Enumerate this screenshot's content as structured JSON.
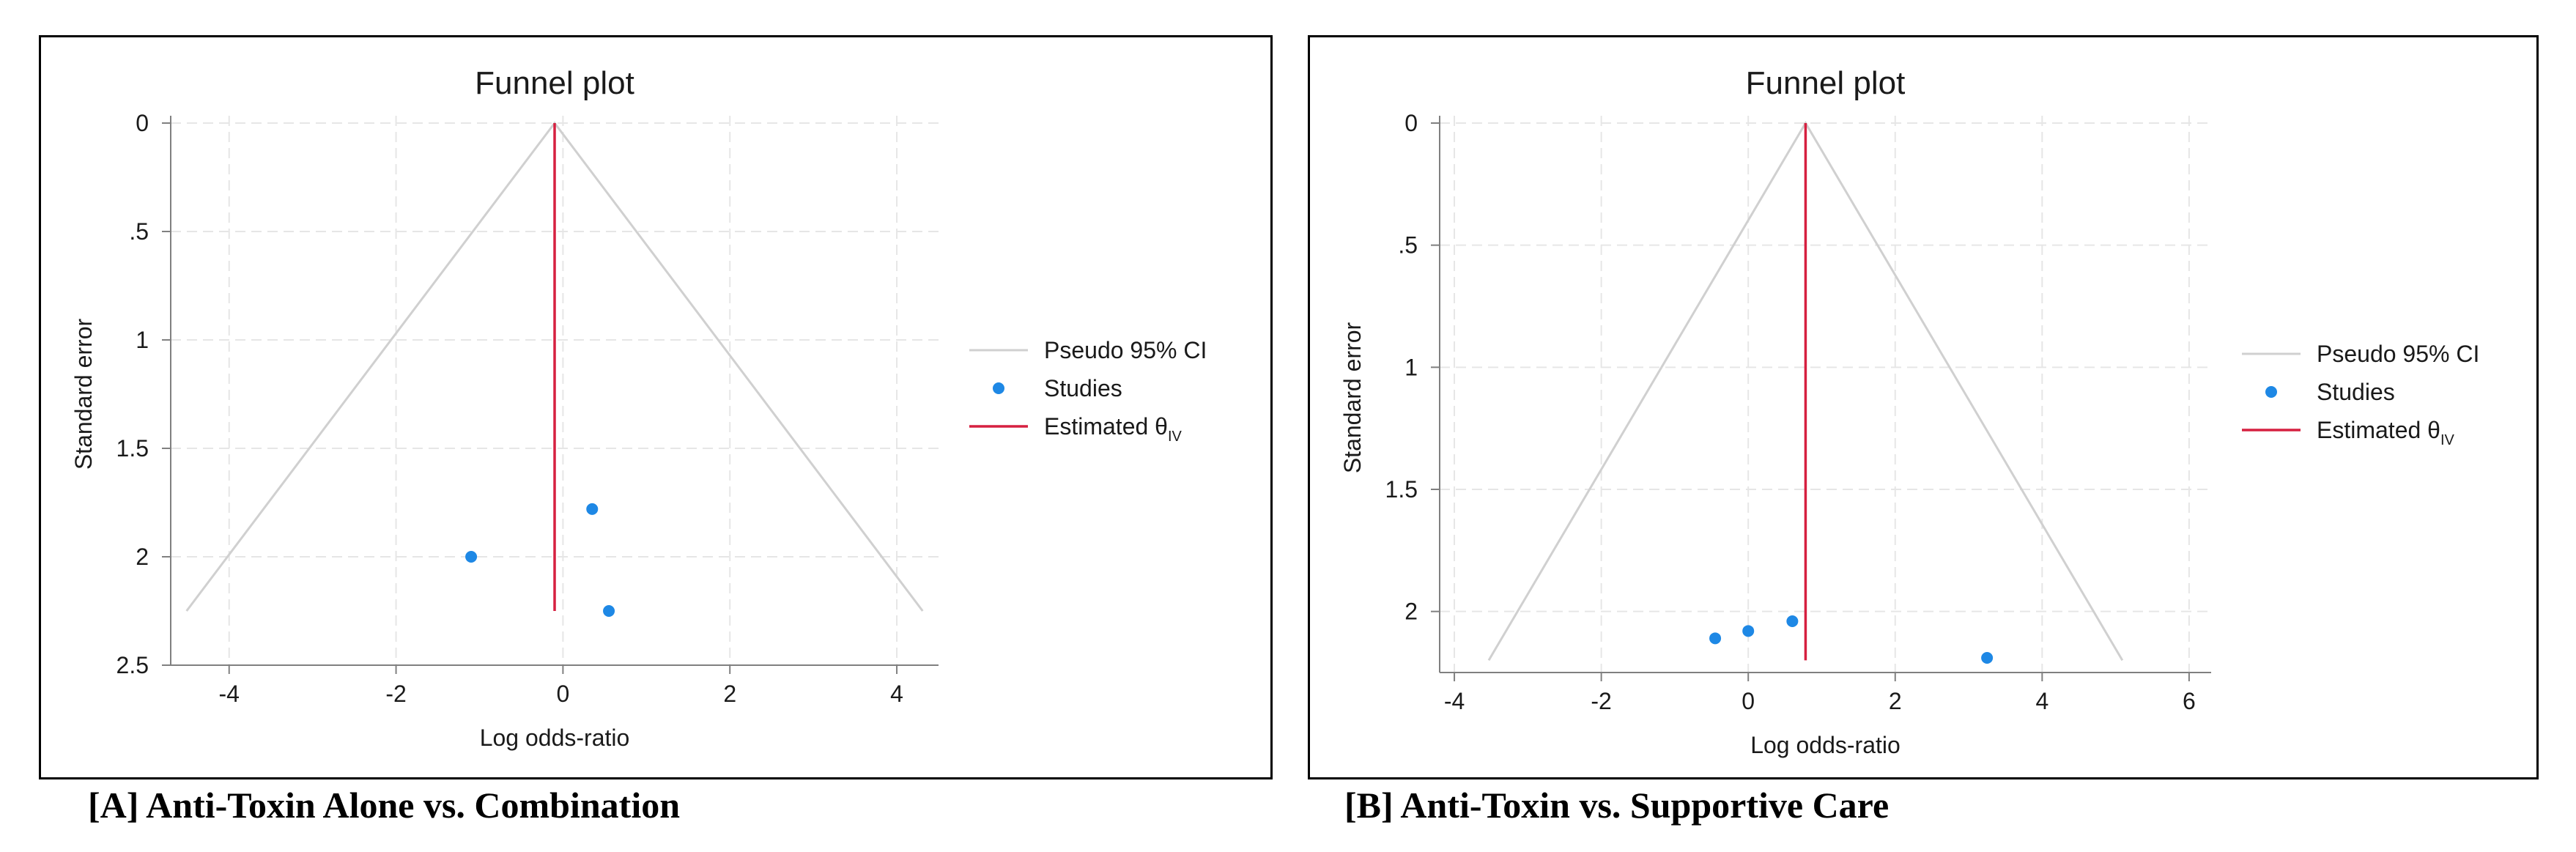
{
  "chart_data": [
    {
      "type": "scatter",
      "title": "Funnel plot",
      "xlabel": "Log odds-ratio",
      "ylabel": "Standard error",
      "xlim": [
        -4.7,
        4.5
      ],
      "ylim": [
        0,
        2.5
      ],
      "y_inverted": true,
      "x_ticks": [
        -4,
        -2,
        0,
        2,
        4
      ],
      "x_tick_labels": [
        "-4",
        "-2",
        "0",
        "2",
        "4"
      ],
      "y_ticks": [
        0,
        0.5,
        1,
        1.5,
        2,
        2.5
      ],
      "y_tick_labels": [
        "0",
        ".5",
        "1",
        "1.5",
        "2",
        "2.5"
      ],
      "grid": true,
      "legend_position": "right",
      "legend": {
        "ci_label": "Pseudo 95% CI",
        "studies_label": "Studies",
        "estimate_label_main": "Estimated θ",
        "estimate_label_sub": "IV"
      },
      "estimate": -0.1,
      "funnel_max_se": 2.25,
      "studies": [
        {
          "x": -1.1,
          "y": 2.0
        },
        {
          "x": 0.35,
          "y": 1.78
        },
        {
          "x": 0.55,
          "y": 2.25
        }
      ],
      "caption": "[A] Anti-Toxin Alone vs. Combination"
    },
    {
      "type": "scatter",
      "title": "Funnel plot",
      "xlabel": "Log odds-ratio",
      "ylabel": "Standard error",
      "xlim": [
        -4.2,
        6.3
      ],
      "ylim": [
        0,
        2.25
      ],
      "y_inverted": true,
      "x_ticks": [
        -4,
        -2,
        0,
        2,
        4,
        6
      ],
      "x_tick_labels": [
        "-4",
        "-2",
        "0",
        "2",
        "4",
        "6"
      ],
      "y_ticks": [
        0,
        0.5,
        1,
        1.5,
        2
      ],
      "y_tick_labels": [
        "0",
        ".5",
        "1",
        "1.5",
        "2"
      ],
      "grid": true,
      "legend_position": "right",
      "legend": {
        "ci_label": "Pseudo 95% CI",
        "studies_label": "Studies",
        "estimate_label_main": "Estimated θ",
        "estimate_label_sub": "IV"
      },
      "estimate": 0.78,
      "funnel_max_se": 2.2,
      "studies": [
        {
          "x": -0.45,
          "y": 2.11
        },
        {
          "x": 0.0,
          "y": 2.08
        },
        {
          "x": 0.6,
          "y": 2.04
        },
        {
          "x": 3.25,
          "y": 2.19
        }
      ],
      "caption": "[B] Anti-Toxin vs. Supportive Care"
    }
  ],
  "colors": {
    "funnel": "#d0d0d0",
    "studies": "#1e88e5",
    "estimate": "#d62040",
    "grid": "#e6e6e6",
    "axis": "#808080",
    "frame": "#000000",
    "text": "#1a1a1a"
  }
}
